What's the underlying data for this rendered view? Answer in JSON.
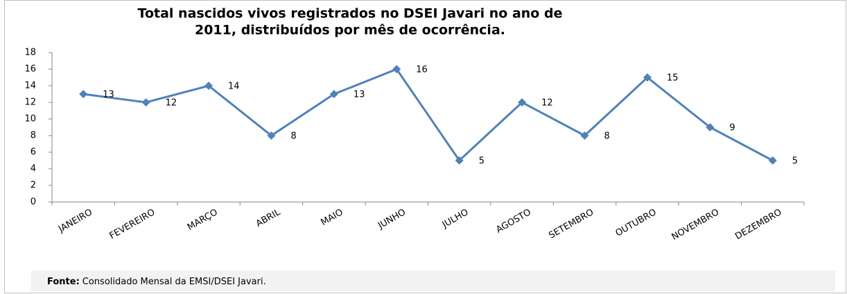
{
  "chart_data": {
    "type": "line",
    "title": [
      "Total nascidos vivos registrados no DSEI Javari no ano de",
      "2011, distribuídos por mês de ocorrência."
    ],
    "categories": [
      "JANEIRO",
      "FEVEREIRO",
      "MARÇO",
      "ABRIL",
      "MAIO",
      "JUNHO",
      "JULHO",
      "AGOSTO",
      "SETEMBRO",
      "OUTUBRO",
      "NOVEMBRO",
      "DEZEMBRO"
    ],
    "series": [
      {
        "color": "#4f81bd",
        "values": [
          13,
          12,
          14,
          8,
          13,
          16,
          5,
          12,
          8,
          15,
          9,
          5
        ]
      }
    ],
    "ylim": [
      0,
      18
    ],
    "yticks": [
      0,
      2,
      4,
      6,
      8,
      10,
      12,
      14,
      16,
      18
    ],
    "grid": false,
    "source": {
      "label": "Fonte:",
      "text": "Consolidado Mensal da EMSI/DSEI Javari."
    }
  }
}
